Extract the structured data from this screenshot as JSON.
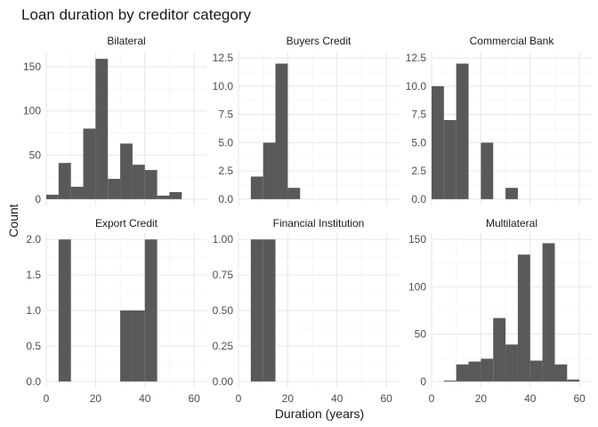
{
  "figure": {
    "title": "Loan duration by creditor category",
    "xlabel": "Duration (years)",
    "ylabel": "Count"
  },
  "chart_data": [
    {
      "type": "bar",
      "facet": "Bilateral",
      "bin_width": 5,
      "x": [
        0,
        5,
        10,
        15,
        20,
        25,
        30,
        35,
        40,
        45,
        50
      ],
      "values": [
        5,
        41,
        14,
        80,
        159,
        23,
        63,
        39,
        33,
        4,
        8
      ],
      "xlim": [
        0,
        65
      ],
      "ylim": [
        0,
        160
      ],
      "xticks": [
        0,
        20,
        40,
        60
      ],
      "yticks": [
        0,
        50,
        100,
        150
      ],
      "ytick_labels": [
        "0",
        "50",
        "100",
        "150"
      ]
    },
    {
      "type": "bar",
      "facet": "Buyers Credit",
      "bin_width": 5,
      "x": [
        5,
        10,
        15,
        20
      ],
      "values": [
        2,
        5,
        12,
        1
      ],
      "xlim": [
        0,
        65
      ],
      "ylim": [
        0,
        12.5
      ],
      "xticks": [
        0,
        20,
        40,
        60
      ],
      "yticks": [
        0,
        2.5,
        5,
        7.5,
        10,
        12.5
      ],
      "ytick_labels": [
        "0.0",
        "2.5",
        "5.0",
        "7.5",
        "10.0",
        "12.5"
      ]
    },
    {
      "type": "bar",
      "facet": "Commercial Bank",
      "bin_width": 5,
      "x": [
        0,
        5,
        10,
        20,
        30
      ],
      "values": [
        10,
        7,
        12,
        5,
        1
      ],
      "xlim": [
        0,
        65
      ],
      "ylim": [
        0,
        12.5
      ],
      "xticks": [
        0,
        20,
        40,
        60
      ],
      "yticks": [
        0,
        2.5,
        5,
        7.5,
        10,
        12.5
      ],
      "ytick_labels": [
        "0.0",
        "2.5",
        "5.0",
        "7.5",
        "10.0",
        "12.5"
      ]
    },
    {
      "type": "bar",
      "facet": "Export Credit",
      "bin_width": 5,
      "x": [
        5,
        30,
        35,
        40
      ],
      "values": [
        2,
        1,
        1,
        2
      ],
      "xlim": [
        0,
        65
      ],
      "ylim": [
        0,
        2
      ],
      "xticks": [
        0,
        20,
        40,
        60
      ],
      "yticks": [
        0,
        0.5,
        1,
        1.5,
        2
      ],
      "ytick_labels": [
        "0.0",
        "0.5",
        "1.0",
        "1.5",
        "2.0"
      ]
    },
    {
      "type": "bar",
      "facet": "Financial Institution",
      "bin_width": 5,
      "x": [
        5,
        10
      ],
      "values": [
        1,
        1
      ],
      "xlim": [
        0,
        65
      ],
      "ylim": [
        0,
        1
      ],
      "xticks": [
        0,
        20,
        40,
        60
      ],
      "yticks": [
        0,
        0.25,
        0.5,
        0.75,
        1
      ],
      "ytick_labels": [
        "0.00",
        "0.25",
        "0.50",
        "0.75",
        "1.00"
      ]
    },
    {
      "type": "bar",
      "facet": "Multilateral",
      "bin_width": 5,
      "x": [
        5,
        10,
        15,
        20,
        25,
        30,
        35,
        40,
        45,
        50,
        55
      ],
      "values": [
        1,
        18,
        21,
        24,
        67,
        39,
        134,
        22,
        146,
        18,
        2
      ],
      "xlim": [
        0,
        65
      ],
      "ylim": [
        0,
        150
      ],
      "xticks": [
        0,
        20,
        40,
        60
      ],
      "yticks": [
        0,
        50,
        100,
        150
      ],
      "ytick_labels": [
        "0",
        "50",
        "100",
        "150"
      ]
    }
  ],
  "colors": {
    "bar": "#595959",
    "grid_major": "#e6e6e6",
    "grid_minor": "#f2f2f2",
    "background": "#ffffff"
  }
}
